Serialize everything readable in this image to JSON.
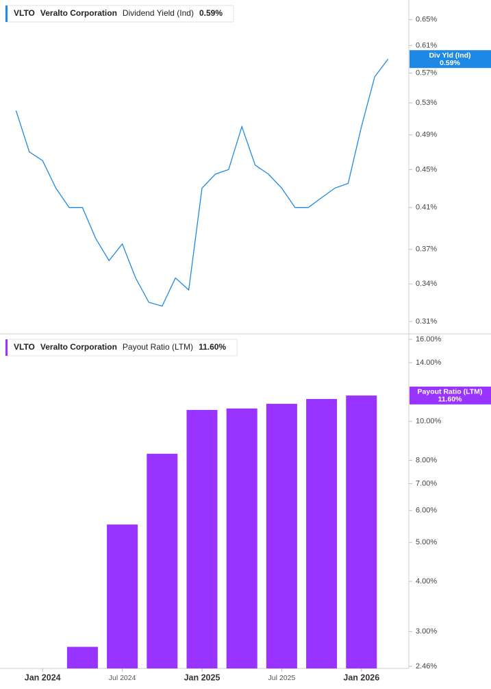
{
  "chart_data": [
    {
      "type": "line",
      "ticker": "VLTO",
      "company": "Veralto Corporation",
      "badge_label": "Div Yld (Ind)",
      "current": {
        "value": 0.59,
        "label": "0.59%"
      },
      "x": [
        "2023-11",
        "2023-12",
        "2024-01",
        "2024-02",
        "2024-03",
        "2024-04",
        "2024-05",
        "2024-06",
        "2024-07",
        "2024-08",
        "2024-09",
        "2024-10",
        "2024-11",
        "2024-12",
        "2025-01",
        "2025-02",
        "2025-03",
        "2025-04",
        "2025-05",
        "2025-06",
        "2025-07",
        "2025-08",
        "2025-09",
        "2025-10",
        "2025-11",
        "2025-12",
        "2026-01",
        "2026-02",
        "2026-03"
      ],
      "series": [
        {
          "name": "Dividend Yield (Ind)",
          "color": "#1e88e5",
          "values": [
            0.52,
            0.47,
            0.46,
            0.43,
            0.41,
            0.41,
            0.38,
            0.36,
            0.375,
            0.345,
            0.325,
            0.322,
            0.345,
            0.335,
            0.43,
            0.445,
            0.45,
            0.5,
            0.455,
            0.445,
            0.43,
            0.41,
            0.41,
            0.42,
            0.43,
            0.435,
            0.5,
            0.565,
            0.59
          ]
        }
      ],
      "xlim": [
        "2023-10",
        "2026-04"
      ],
      "ylim": [
        0.3008,
        0.682
      ],
      "log_scale": true,
      "yticks": [
        {
          "value": 0.31,
          "label": "0.31%"
        },
        {
          "value": 0.34,
          "label": "0.34%"
        },
        {
          "value": 0.37,
          "label": "0.37%"
        },
        {
          "value": 0.41,
          "label": "0.41%"
        },
        {
          "value": 0.45,
          "label": "0.45%"
        },
        {
          "value": 0.49,
          "label": "0.49%"
        },
        {
          "value": 0.53,
          "label": "0.53%"
        },
        {
          "value": 0.57,
          "label": "0.57%"
        },
        {
          "value": 0.61,
          "label": "0.61%"
        },
        {
          "value": 0.65,
          "label": "0.65%"
        }
      ]
    },
    {
      "type": "bar",
      "ticker": "VLTO",
      "company": "Veralto Corporation",
      "current": {
        "value": 11.6,
        "label": "11.60%"
      },
      "x": [
        "2024-04",
        "2024-07",
        "2024-10",
        "2025-01",
        "2025-04",
        "2025-07",
        "2025-10",
        "2026-01"
      ],
      "series": [
        {
          "name": "Payout Ratio (LTM)",
          "color": "#9933ff",
          "values": [
            2.75,
            5.54,
            8.31,
            10.68,
            10.77,
            11.06,
            11.37,
            11.6
          ]
        }
      ],
      "xlim": [
        "2023-10",
        "2026-04"
      ],
      "xticks": [
        {
          "value": "2024-01",
          "label": "Jan 2024"
        },
        {
          "value": "2024-07",
          "label": "Jul 2024"
        },
        {
          "value": "2025-01",
          "label": "Jan 2025"
        },
        {
          "value": "2025-07",
          "label": "Jul 2025"
        },
        {
          "value": "2026-01",
          "label": "Jan 2026"
        }
      ],
      "ylim": [
        2.43,
        16.51
      ],
      "log_scale": true,
      "yticks": [
        {
          "value": 2.46,
          "label": "2.46%"
        },
        {
          "value": 3,
          "label": "3.00%"
        },
        {
          "value": 4,
          "label": "4.00%"
        },
        {
          "value": 5,
          "label": "5.00%"
        },
        {
          "value": 6,
          "label": "6.00%"
        },
        {
          "value": 7,
          "label": "7.00%"
        },
        {
          "value": 8,
          "label": "8.00%"
        },
        {
          "value": 10,
          "label": "10.00%"
        },
        {
          "value": 14,
          "label": "14.00%"
        },
        {
          "value": 16,
          "label": "16.00%"
        }
      ]
    }
  ]
}
